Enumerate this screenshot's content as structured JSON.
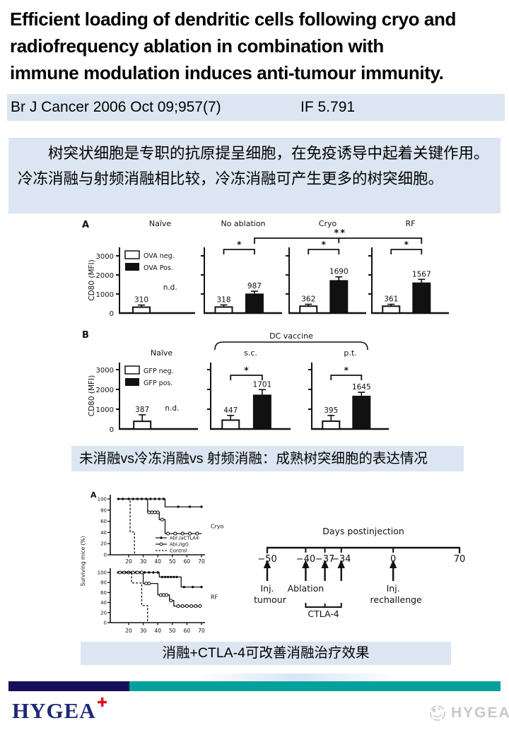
{
  "colors": {
    "accent_bg": "#dce6f2",
    "footer_navy": "#161058",
    "footer_teal": "#00a29b",
    "logo_navy": "#1e2878",
    "cross_red": "#e01016",
    "watermark_gray": "#c6c6c6"
  },
  "slide": {
    "title_lines": [
      "Efficient loading of dendritic cells following cryo and",
      "radiofrequency ablation in combination with",
      "immune modulation induces anti-tumour immunity."
    ],
    "citation": "Br J Cancer 2006 Oct 09;957(7)",
    "impact_factor": "IF 5.791",
    "summary": "树突状细胞是专职的抗原提呈细胞，在免疫诱导中起着关键作用。冷冻消融与射频消融相比较，冷冻消融可产生更多的树突细胞。",
    "caption1": "未消融vs冷冻消融vs 射频消融：成熟树突细胞的表达情况",
    "caption2": "消融+CTLA-4可改善消融治疗效果",
    "footer": {
      "logo_text": "HYGEA",
      "watermark_text": "HYGEA"
    }
  },
  "chart_data": [
    {
      "type": "bar",
      "panel": "A",
      "ylabel": "CD80 (MFI)",
      "yticks": [
        0,
        1000,
        2000,
        3000
      ],
      "ylim": [
        0,
        3400
      ],
      "legend": [
        "OVA neg.",
        "OVA Pos."
      ],
      "groups": [
        {
          "label": "Naïve",
          "neg": {
            "value": 310,
            "err": 110
          },
          "pos": null,
          "note": "n.d."
        },
        {
          "label": "No ablation",
          "neg": {
            "value": 318,
            "err": 110
          },
          "pos": {
            "value": 987,
            "err": 160
          },
          "sig": "*"
        },
        {
          "label": "Cryo",
          "neg": {
            "value": 362,
            "err": 100
          },
          "pos": {
            "value": 1690,
            "err": 210
          },
          "sig": "*"
        },
        {
          "label": "RF",
          "neg": {
            "value": 361,
            "err": 100
          },
          "pos": {
            "value": 1567,
            "err": 200
          },
          "sig": "*"
        }
      ],
      "between_sig": {
        "label": "**",
        "from": 1,
        "to": 3,
        "mid": 2
      }
    },
    {
      "type": "bar",
      "panel": "B",
      "ylabel": "CD80 (MFI)",
      "yticks": [
        0,
        1000,
        2000,
        3000
      ],
      "ylim": [
        0,
        3400
      ],
      "legend": [
        "GFP neg.",
        "GFP pos."
      ],
      "span_bracket": {
        "label": "DC vaccine",
        "from": 1,
        "to": 2
      },
      "groups": [
        {
          "label": "Naïve",
          "neg": {
            "value": 387,
            "err": 330
          },
          "pos": null,
          "note": "n.d."
        },
        {
          "label": "s.c.",
          "neg": {
            "value": 447,
            "err": 240
          },
          "pos": {
            "value": 1701,
            "err": 290
          },
          "sig": "*"
        },
        {
          "label": "p.t.",
          "neg": {
            "value": 395,
            "err": 290
          },
          "pos": {
            "value": 1645,
            "err": 210
          },
          "sig": "*"
        }
      ]
    },
    {
      "type": "line",
      "panel": "A",
      "title_right": "Cryo",
      "ylabel": "Surviving mice (%)",
      "yticks": [
        0,
        20,
        40,
        60,
        80,
        100
      ],
      "xticks": [
        20,
        30,
        40,
        50,
        60,
        70
      ],
      "series": [
        {
          "name": "Abl./aCTLA4",
          "style": "solid-filled",
          "points": [
            [
              12,
              100
            ],
            [
              45,
              100
            ],
            [
              45,
              86
            ],
            [
              70,
              86
            ]
          ],
          "markers": [
            [
              13,
              100
            ],
            [
              16,
              100
            ],
            [
              20,
              100
            ],
            [
              23,
              100
            ],
            [
              26,
              100
            ],
            [
              29,
              100
            ],
            [
              32,
              100
            ],
            [
              35,
              100
            ],
            [
              38,
              100
            ],
            [
              41,
              100
            ],
            [
              44,
              100
            ],
            [
              54,
              86
            ],
            [
              62,
              86
            ],
            [
              70,
              86
            ]
          ]
        },
        {
          "name": "Abl./IgG",
          "style": "solid-open",
          "points": [
            [
              12,
              100
            ],
            [
              33,
              100
            ],
            [
              33,
              76
            ],
            [
              41,
              76
            ],
            [
              41,
              63
            ],
            [
              45,
              63
            ],
            [
              45,
              38
            ],
            [
              70,
              38
            ]
          ],
          "markers": [
            [
              34,
              76
            ],
            [
              36,
              76
            ],
            [
              38,
              76
            ],
            [
              40,
              76
            ],
            [
              43,
              63
            ],
            [
              47,
              38
            ],
            [
              52,
              38
            ],
            [
              57,
              38
            ],
            [
              62,
              38
            ],
            [
              67,
              38
            ]
          ]
        },
        {
          "name": "Control",
          "style": "dashed",
          "points": [
            [
              12,
              100
            ],
            [
              21,
              100
            ],
            [
              21,
              41
            ],
            [
              24,
              41
            ],
            [
              24,
              0
            ]
          ],
          "markers": []
        }
      ]
    },
    {
      "type": "line",
      "panel": "",
      "title_right": "RF",
      "ylabel": "Surviving mice (%)",
      "yticks": [
        0,
        20,
        40,
        60,
        80,
        100
      ],
      "xticks": [
        20,
        30,
        40,
        50,
        60,
        70
      ],
      "series": [
        {
          "name": "Abl./aCTLA4",
          "style": "solid-filled",
          "points": [
            [
              12,
              100
            ],
            [
              41,
              100
            ],
            [
              41,
              91
            ],
            [
              56,
              91
            ],
            [
              56,
              71
            ],
            [
              70,
              71
            ]
          ],
          "markers": [
            [
              13,
              100
            ],
            [
              16,
              100
            ],
            [
              19,
              100
            ],
            [
              22,
              100
            ],
            [
              25,
              100
            ],
            [
              28,
              100
            ],
            [
              31,
              100
            ],
            [
              34,
              100
            ],
            [
              37,
              100
            ],
            [
              40,
              100
            ],
            [
              43,
              91
            ],
            [
              45,
              91
            ],
            [
              47,
              91
            ],
            [
              49,
              91
            ],
            [
              51,
              91
            ],
            [
              53,
              91
            ],
            [
              58,
              71
            ],
            [
              64,
              71
            ],
            [
              70,
              71
            ]
          ]
        },
        {
          "name": "Abl./IgG",
          "style": "solid-open",
          "points": [
            [
              12,
              100
            ],
            [
              30,
              100
            ],
            [
              30,
              78
            ],
            [
              40,
              78
            ],
            [
              40,
              55
            ],
            [
              48,
              55
            ],
            [
              48,
              44
            ],
            [
              51,
              44
            ],
            [
              51,
              33
            ],
            [
              70,
              33
            ]
          ],
          "markers": [
            [
              14,
              100
            ],
            [
              17,
              100
            ],
            [
              20,
              100
            ],
            [
              23,
              100
            ],
            [
              26,
              100
            ],
            [
              29,
              100
            ],
            [
              32,
              78
            ],
            [
              34,
              78
            ],
            [
              42,
              55
            ],
            [
              44,
              55
            ],
            [
              46,
              55
            ],
            [
              49,
              44
            ],
            [
              54,
              33
            ],
            [
              57,
              33
            ],
            [
              60,
              33
            ],
            [
              63,
              33
            ],
            [
              66,
              33
            ],
            [
              69,
              33
            ]
          ]
        },
        {
          "name": "Control",
          "style": "dashed",
          "points": [
            [
              12,
              100
            ],
            [
              22,
              100
            ],
            [
              22,
              79
            ],
            [
              29,
              79
            ],
            [
              29,
              34
            ],
            [
              33,
              34
            ],
            [
              33,
              0
            ]
          ],
          "markers": []
        }
      ]
    },
    {
      "type": "timeline",
      "title": "Days postinjection",
      "ticks": [
        {
          "label": "−50",
          "pos": 0
        },
        {
          "label": "−40",
          "pos": 0.2
        },
        {
          "label": "−37",
          "pos": 0.3
        },
        {
          "label": "−34",
          "pos": 0.385
        },
        {
          "label": "0",
          "pos": 0.655
        },
        {
          "label": "70",
          "pos": 1
        }
      ],
      "arrows": [
        0,
        0.2,
        0.3,
        0.385,
        0.655
      ],
      "events": [
        {
          "lines": [
            "Inj.",
            "tumour"
          ],
          "pos": 0
        },
        {
          "lines": [
            "Ablation"
          ],
          "pos": 0.2
        },
        {
          "lines": [
            "Inj.",
            "rechallenge"
          ],
          "pos": 0.655
        }
      ],
      "bracket": {
        "label": "CTLA-4",
        "from": 0.2,
        "to": 0.385,
        "mid": 0.3
      }
    }
  ]
}
